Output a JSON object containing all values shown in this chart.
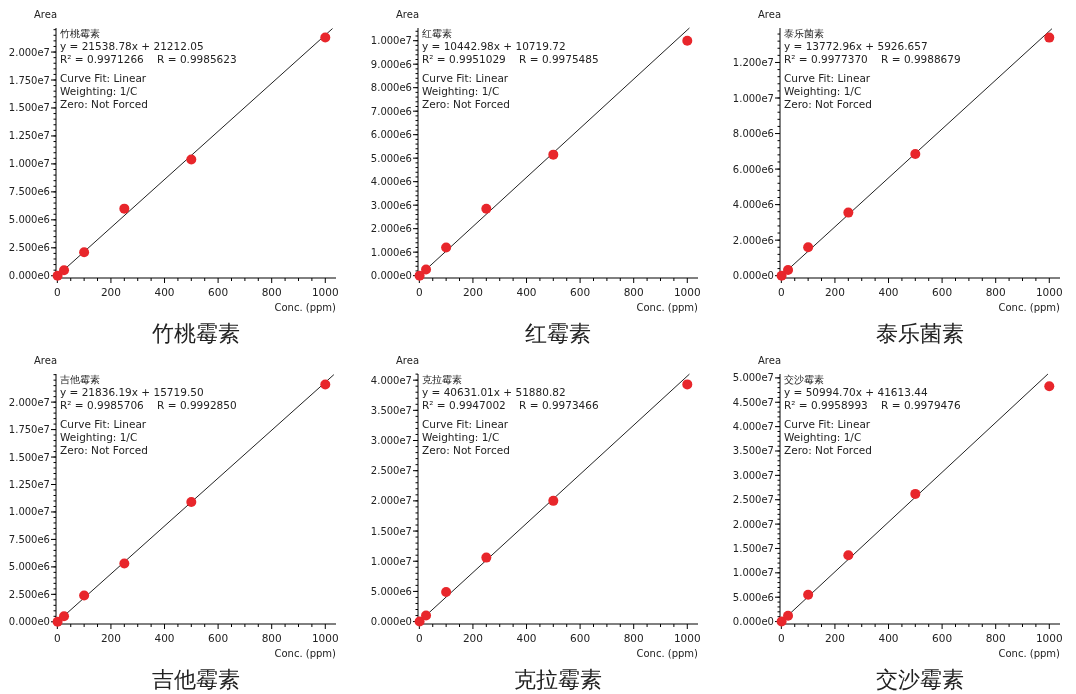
{
  "chart_data": [
    {
      "type": "scatter",
      "title": "竹桃霉素",
      "xlabel": "Conc. (ppm)",
      "ylabel": "Area",
      "marker": "circle",
      "xlim": [
        -5,
        1040
      ],
      "ylim": [
        -200000,
        22150000
      ],
      "xticks": [
        0,
        200,
        400,
        600,
        800,
        1000
      ],
      "yticks": [
        {
          "value": 0,
          "label": "0.000e0"
        },
        {
          "value": 2500000,
          "label": "2.500e6"
        },
        {
          "value": 5000000,
          "label": "5.000e6"
        },
        {
          "value": 7500000,
          "label": "7.500e6"
        },
        {
          "value": 10000000,
          "label": "1.000e7"
        },
        {
          "value": 12500000,
          "label": "1.250e7"
        },
        {
          "value": 15000000,
          "label": "1.500e7"
        },
        {
          "value": 17500000,
          "label": "1.750e7"
        },
        {
          "value": 20000000,
          "label": "2.000e7"
        }
      ],
      "annotations": [
        "竹桃霉素",
        "y = 21538.78x + 21212.05",
        "R² = 0.9971266    R = 0.9985623",
        "Curve Fit: Linear",
        "Weighting: 1/C",
        "Zero: Not Forced"
      ],
      "series": [
        {
          "type": "scatter",
          "color": "#e8262b",
          "x": [
            1,
            25,
            100,
            250,
            500,
            1000
          ],
          "values": [
            0,
            500000,
            2100000,
            6000000,
            10400000,
            21300000
          ]
        },
        {
          "type": "line",
          "marker": "none",
          "color": "#222222",
          "x": [
            0,
            1027
          ],
          "values": [
            0,
            22100000
          ]
        }
      ]
    },
    {
      "type": "scatter",
      "title": "红霉素",
      "xlabel": "Conc. (ppm)",
      "ylabel": "Area",
      "marker": "circle",
      "xlim": [
        -5,
        1040
      ],
      "ylim": [
        -100000,
        10540000
      ],
      "xticks": [
        0,
        200,
        400,
        600,
        800,
        1000
      ],
      "yticks": [
        {
          "value": 0,
          "label": "0.000e0"
        },
        {
          "value": 1000000,
          "label": "1.000e6"
        },
        {
          "value": 2000000,
          "label": "2.000e6"
        },
        {
          "value": 3000000,
          "label": "3.000e6"
        },
        {
          "value": 4000000,
          "label": "4.000e6"
        },
        {
          "value": 5000000,
          "label": "5.000e6"
        },
        {
          "value": 6000000,
          "label": "6.000e6"
        },
        {
          "value": 7000000,
          "label": "7.000e6"
        },
        {
          "value": 8000000,
          "label": "8.000e6"
        },
        {
          "value": 9000000,
          "label": "9.000e6"
        },
        {
          "value": 10000000,
          "label": "1.000e7"
        }
      ],
      "annotations": [
        "红霉素",
        "y = 10442.98x + 10719.72",
        "R² = 0.9951029    R = 0.9975485",
        "Curve Fit: Linear",
        "Weighting: 1/C",
        "Zero: Not Forced"
      ],
      "series": [
        {
          "type": "scatter",
          "color": "#e8262b",
          "x": [
            1,
            25,
            100,
            250,
            500,
            1000
          ],
          "values": [
            0,
            260000,
            1200000,
            2850000,
            5150000,
            10000000
          ]
        },
        {
          "type": "line",
          "marker": "none",
          "color": "#222222",
          "x": [
            0,
            1008
          ],
          "values": [
            0,
            10540000
          ]
        }
      ]
    },
    {
      "type": "scatter",
      "title": "泰乐菌素",
      "xlabel": "Conc. (ppm)",
      "ylabel": "Area",
      "marker": "circle",
      "xlim": [
        -5,
        1040
      ],
      "ylim": [
        -130000,
        13940000
      ],
      "xticks": [
        0,
        200,
        400,
        600,
        800,
        1000
      ],
      "yticks": [
        {
          "value": 0,
          "label": "0.000e0"
        },
        {
          "value": 2000000,
          "label": "2.000e6"
        },
        {
          "value": 4000000,
          "label": "4.000e6"
        },
        {
          "value": 6000000,
          "label": "6.000e6"
        },
        {
          "value": 8000000,
          "label": "8.000e6"
        },
        {
          "value": 10000000,
          "label": "1.000e7"
        },
        {
          "value": 12000000,
          "label": "1.200e7"
        }
      ],
      "annotations": [
        "泰乐菌素",
        "y = 13772.96x + 5926.657",
        "R² = 0.9977370    R = 0.9988679",
        "Curve Fit: Linear",
        "Weighting: 1/C",
        "Zero: Not Forced"
      ],
      "series": [
        {
          "type": "scatter",
          "color": "#e8262b",
          "x": [
            1,
            25,
            100,
            250,
            500,
            1000
          ],
          "values": [
            0,
            320000,
            1600000,
            3550000,
            6850000,
            13400000
          ]
        },
        {
          "type": "line",
          "marker": "none",
          "color": "#222222",
          "x": [
            0,
            1010
          ],
          "values": [
            0,
            13900000
          ]
        }
      ]
    },
    {
      "type": "scatter",
      "title": "吉他霉素",
      "xlabel": "Conc. (ppm)",
      "ylabel": "Area",
      "marker": "circle",
      "xlim": [
        -5,
        1040
      ],
      "ylim": [
        -200000,
        22560000
      ],
      "xticks": [
        0,
        200,
        400,
        600,
        800,
        1000
      ],
      "yticks": [
        {
          "value": 0,
          "label": "0.000e0"
        },
        {
          "value": 2500000,
          "label": "2.500e6"
        },
        {
          "value": 5000000,
          "label": "5.000e6"
        },
        {
          "value": 7500000,
          "label": "7.500e6"
        },
        {
          "value": 10000000,
          "label": "1.000e7"
        },
        {
          "value": 12500000,
          "label": "1.250e7"
        },
        {
          "value": 15000000,
          "label": "1.500e7"
        },
        {
          "value": 17500000,
          "label": "1.750e7"
        },
        {
          "value": 20000000,
          "label": "2.000e7"
        }
      ],
      "annotations": [
        "吉他霉素",
        "y = 21836.19x + 15719.50",
        "R² = 0.9985706    R = 0.9992850",
        "Curve Fit: Linear",
        "Weighting: 1/C",
        "Zero: Not Forced"
      ],
      "series": [
        {
          "type": "scatter",
          "color": "#e8262b",
          "x": [
            1,
            25,
            100,
            250,
            500,
            1000
          ],
          "values": [
            0,
            500000,
            2400000,
            5300000,
            10900000,
            21600000
          ]
        },
        {
          "type": "line",
          "marker": "none",
          "color": "#222222",
          "x": [
            0,
            1032
          ],
          "values": [
            0,
            22500000
          ]
        }
      ]
    },
    {
      "type": "scatter",
      "title": "克拉霉素",
      "xlabel": "Conc. (ppm)",
      "ylabel": "Area",
      "marker": "circle",
      "xlim": [
        -5,
        1040
      ],
      "ylim": [
        -400000,
        41020000
      ],
      "xticks": [
        0,
        200,
        400,
        600,
        800,
        1000
      ],
      "yticks": [
        {
          "value": 0,
          "label": "0.000e0"
        },
        {
          "value": 5000000,
          "label": "5.000e6"
        },
        {
          "value": 10000000,
          "label": "1.000e7"
        },
        {
          "value": 15000000,
          "label": "1.500e7"
        },
        {
          "value": 20000000,
          "label": "2.000e7"
        },
        {
          "value": 25000000,
          "label": "2.500e7"
        },
        {
          "value": 30000000,
          "label": "3.000e7"
        },
        {
          "value": 35000000,
          "label": "3.500e7"
        },
        {
          "value": 40000000,
          "label": "4.000e7"
        }
      ],
      "annotations": [
        "克拉霉素",
        "y = 40631.01x + 51880.82",
        "R² = 0.9947002    R = 0.9973466",
        "Curve Fit: Linear",
        "Weighting: 1/C",
        "Zero: Not Forced"
      ],
      "series": [
        {
          "type": "scatter",
          "color": "#e8262b",
          "x": [
            1,
            25,
            100,
            250,
            500,
            1000
          ],
          "values": [
            0,
            1000000,
            4900000,
            10600000,
            20000000,
            39300000
          ]
        },
        {
          "type": "line",
          "marker": "none",
          "color": "#222222",
          "x": [
            0,
            1008
          ],
          "values": [
            0,
            41000000
          ]
        }
      ]
    },
    {
      "type": "scatter",
      "title": "交沙霉素",
      "xlabel": "Conc. (ppm)",
      "ylabel": "Area",
      "marker": "circle",
      "xlim": [
        -5,
        1040
      ],
      "ylim": [
        -500000,
        50800000
      ],
      "xticks": [
        0,
        200,
        400,
        600,
        800,
        1000
      ],
      "yticks": [
        {
          "value": 0,
          "label": "0.000e0"
        },
        {
          "value": 5000000,
          "label": "5.000e6"
        },
        {
          "value": 10000000,
          "label": "1.000e7"
        },
        {
          "value": 15000000,
          "label": "1.500e7"
        },
        {
          "value": 20000000,
          "label": "2.000e7"
        },
        {
          "value": 25000000,
          "label": "2.500e7"
        },
        {
          "value": 30000000,
          "label": "3.000e7"
        },
        {
          "value": 35000000,
          "label": "3.500e7"
        },
        {
          "value": 40000000,
          "label": "4.000e7"
        },
        {
          "value": 45000000,
          "label": "4.500e7"
        },
        {
          "value": 50000000,
          "label": "5.000e7"
        }
      ],
      "annotations": [
        "交沙霉素",
        "y = 50994.70x + 41613.44",
        "R² = 0.9958993    R = 0.9979476",
        "Curve Fit: Linear",
        "Weighting: 1/C",
        "Zero: Not Forced"
      ],
      "series": [
        {
          "type": "scatter",
          "color": "#e8262b",
          "x": [
            1,
            25,
            100,
            250,
            500,
            1000
          ],
          "values": [
            0,
            1200000,
            5500000,
            13600000,
            26200000,
            48300000
          ]
        },
        {
          "type": "line",
          "marker": "none",
          "color": "#222222",
          "x": [
            0,
            995
          ],
          "values": [
            0,
            50800000
          ]
        }
      ]
    }
  ]
}
